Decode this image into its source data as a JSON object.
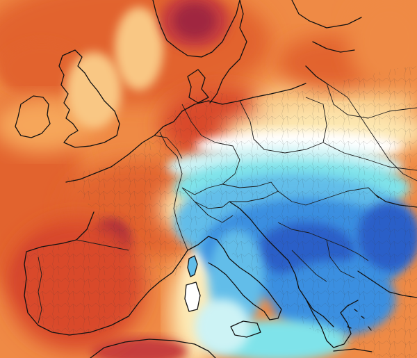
{
  "map": {
    "type": "temperature-anomaly-map",
    "region": "Europe",
    "colors": {
      "deep_red": "#a0283f",
      "dark_red": "#c63c3c",
      "red": "#d94a2b",
      "red_orange": "#e2632f",
      "orange": "#ef8a45",
      "light_orange": "#f6a65a",
      "tan": "#f9c784",
      "pale_yellow": "#fde9b3",
      "white": "#ffffff",
      "pale_cyan": "#cdf3f5",
      "cyan": "#7fe3ea",
      "light_blue": "#62bde9",
      "blue": "#3a8fe0",
      "deep_blue": "#2a5fc8",
      "coastline": "#111111"
    },
    "icons": [
      "coastline-layer",
      "country-borders-layer",
      "admin-borders-layer"
    ]
  }
}
